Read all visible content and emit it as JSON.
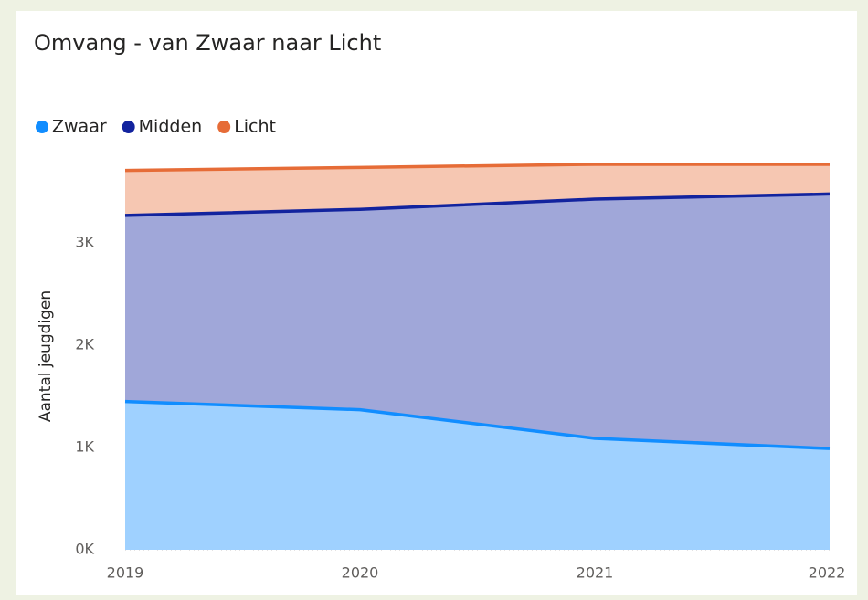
{
  "chart_data": {
    "type": "stacked_area",
    "title": "Omvang - van Zwaar naar Licht",
    "ylabel": "Aantal jeugdigen",
    "categories": [
      "2019",
      "2020",
      "2021",
      "2022"
    ],
    "series": [
      {
        "name": "Zwaar",
        "color": "#118DFF",
        "fill": "#9FD1FF",
        "values": [
          1450,
          1370,
          1090,
          990
        ]
      },
      {
        "name": "Midden",
        "color": "#12239E",
        "fill": "#A0A7D9",
        "values": [
          1820,
          1960,
          2340,
          2490
        ]
      },
      {
        "name": "Licht",
        "color": "#E66C37",
        "fill": "#F6C7B2",
        "values": [
          440,
          410,
          340,
          290
        ]
      }
    ],
    "ylim": [
      0,
      3850
    ],
    "yticks": [
      {
        "value": 0,
        "label": "0K"
      },
      {
        "value": 1000,
        "label": "1K"
      },
      {
        "value": 2000,
        "label": "2K"
      },
      {
        "value": 3000,
        "label": "3K"
      }
    ],
    "grid": true
  }
}
